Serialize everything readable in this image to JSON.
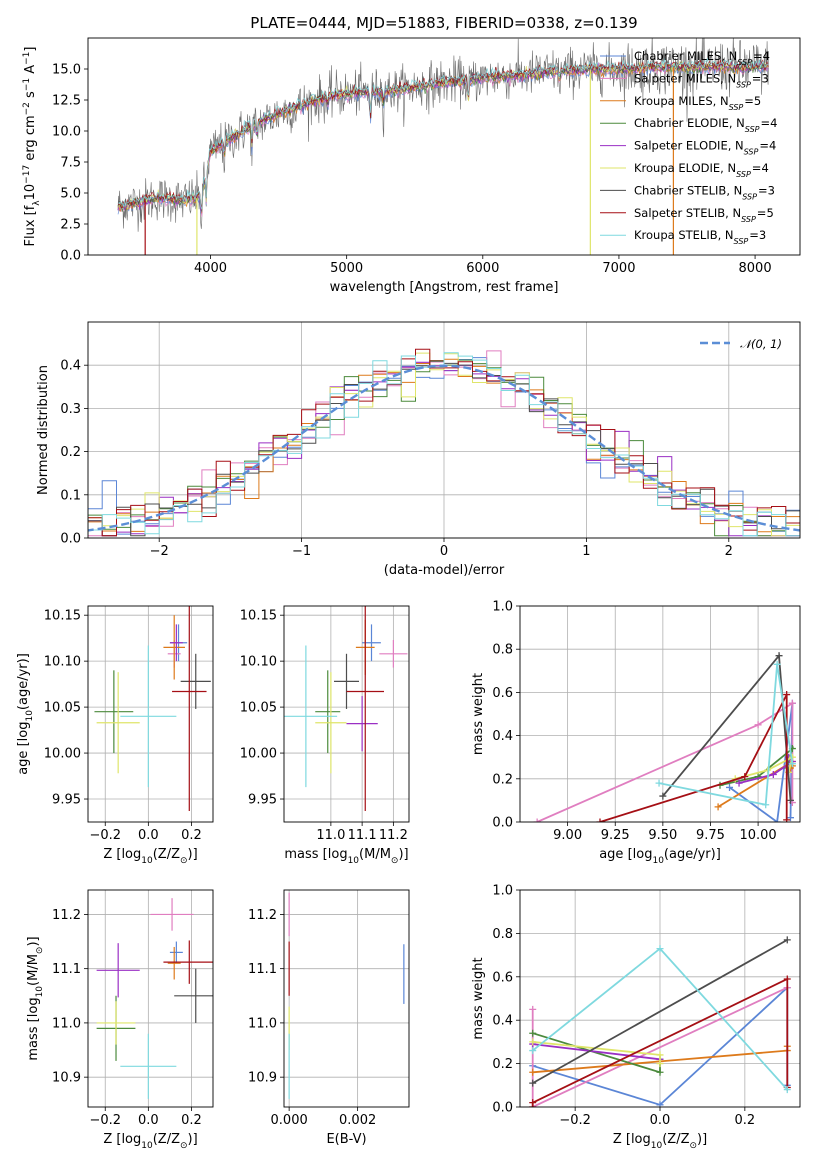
{
  "figure": {
    "title": "PLATE=0444, MJD=51883, FIBERID=0338, z=0.139"
  },
  "colors": {
    "Chabrier MILES": "#5b86d6",
    "Salpeter MILES": "#e07ec0",
    "Kroupa MILES": "#dd7a1b",
    "Chabrier ELODIE": "#4b8a3c",
    "Salpeter ELODIE": "#9a2fc4",
    "Kroupa ELODIE": "#dfe56a",
    "Chabrier STELIB": "#4d4d4d",
    "Salpeter STELIB": "#a50f15",
    "Kroupa STELIB": "#7fd9df",
    "normal": "#5b8ed6"
  },
  "chart_data": [
    {
      "id": "spectrum",
      "type": "line",
      "title": "PLATE=0444, MJD=51883, FIBERID=0338, z=0.139",
      "xlabel": "wavelength [Angstrom, rest frame]",
      "ylabel": "Flux [f_λ10^-17 erg cm^-2 s^-1 A^-1]",
      "xlim": [
        3100,
        8330
      ],
      "ylim": [
        0,
        17.5
      ],
      "xticks": [
        4000,
        5000,
        6000,
        7000,
        8000
      ],
      "yticks": [
        0.0,
        2.5,
        5.0,
        7.5,
        10.0,
        12.5,
        15.0
      ],
      "grid": false,
      "legend_position": "top-right",
      "legend": [
        {
          "label": "Chabrier MILES",
          "nssp": "4"
        },
        {
          "label": "Salpeter MILES",
          "nssp": "3"
        },
        {
          "label": "Kroupa MILES",
          "nssp": "5"
        },
        {
          "label": "Chabrier ELODIE",
          "nssp": "4"
        },
        {
          "label": "Salpeter ELODIE",
          "nssp": "4"
        },
        {
          "label": "Kroupa ELODIE",
          "nssp": "4"
        },
        {
          "label": "Chabrier STELIB",
          "nssp": "3"
        },
        {
          "label": "Salpeter STELIB",
          "nssp": "5"
        },
        {
          "label": "Kroupa STELIB",
          "nssp": "3"
        }
      ],
      "continuum": {
        "x": [
          3320,
          3500,
          3600,
          3800,
          3900,
          3950,
          4000,
          4100,
          4300,
          4500,
          4700,
          4900,
          5100,
          5300,
          5500,
          5700,
          5900,
          6100,
          6300,
          6500,
          6700,
          6900,
          7100,
          7300,
          7500,
          7700,
          7900,
          8100
        ],
        "y": [
          3.9,
          4.3,
          4.6,
          4.4,
          4.6,
          5.5,
          8.3,
          9.1,
          10.4,
          11.4,
          12.2,
          12.9,
          13.1,
          13.2,
          13.5,
          13.9,
          14.1,
          14.4,
          14.5,
          14.8,
          14.9,
          15.0,
          15.0,
          15.2,
          15.1,
          15.2,
          15.1,
          15.2
        ]
      },
      "absorption_features": [
        {
          "x": 3933,
          "depth": 3.0
        },
        {
          "x": 3968,
          "depth": 2.5
        },
        {
          "x": 4101,
          "depth": 1.5
        },
        {
          "x": 4304,
          "depth": 2.0
        },
        {
          "x": 4340,
          "depth": 1.3
        },
        {
          "x": 4861,
          "depth": 1.0
        },
        {
          "x": 5175,
          "depth": 2.5
        },
        {
          "x": 5270,
          "depth": 1.2
        },
        {
          "x": 5893,
          "depth": 2.3
        },
        {
          "x": 6563,
          "depth": 1.0
        }
      ],
      "model_artifacts": [
        {
          "x": 3520,
          "series": "Salpeter STELIB"
        },
        {
          "x": 3900,
          "series": "Kroupa ELODIE"
        },
        {
          "x": 6790,
          "series": "Kroupa ELODIE"
        },
        {
          "x": 7400,
          "series": "Kroupa MILES"
        }
      ]
    },
    {
      "id": "residuals",
      "type": "histogram",
      "xlabel": "(data-model)/error",
      "ylabel": "Normed distribution",
      "xlim": [
        -2.5,
        2.5
      ],
      "ylim": [
        0,
        0.5
      ],
      "xticks": [
        -2,
        -1,
        0,
        1,
        2
      ],
      "yticks": [
        0.0,
        0.1,
        0.2,
        0.3,
        0.4
      ],
      "grid": true,
      "legend_position": "top-right",
      "legend": [
        {
          "label": "𝒩(0, 1)"
        }
      ],
      "bin_width": 0.1
    },
    {
      "id": "age-vs-Z",
      "type": "errorbar",
      "xlabel": "Z [log10(Z/Z⊙)]",
      "ylabel": "age  [log10(age/yr)]",
      "xlim": [
        -0.28,
        0.3
      ],
      "ylim": [
        9.925,
        10.16
      ],
      "xticks": [
        -0.2,
        0.0,
        0.2
      ],
      "yticks": [
        9.95,
        10.0,
        10.05,
        10.1,
        10.15
      ],
      "grid": true,
      "points": [
        {
          "series": "Chabrier MILES",
          "x": 0.14,
          "xerr": 0.04,
          "y": 10.12,
          "yerr": 0.02
        },
        {
          "series": "Salpeter MILES",
          "x": 0.12,
          "xerr": 0.03,
          "y": 10.108,
          "yerr": 0.015
        },
        {
          "series": "Kroupa MILES",
          "x": 0.12,
          "xerr": 0.05,
          "y": 10.115,
          "yerr": 0.035
        },
        {
          "series": "Chabrier ELODIE",
          "x": -0.16,
          "xerr": 0.09,
          "y": 10.045,
          "yerr": 0.045
        },
        {
          "series": "Salpeter ELODIE",
          "x": 0.13,
          "xerr": 0.03,
          "y": 10.12,
          "yerr": 0.02
        },
        {
          "series": "Kroupa ELODIE",
          "x": -0.14,
          "xerr": 0.1,
          "y": 10.033,
          "yerr": 0.055
        },
        {
          "series": "Chabrier STELIB",
          "x": 0.22,
          "xerr": 0.07,
          "y": 10.078,
          "yerr": 0.03
        },
        {
          "series": "Salpeter STELIB",
          "x": 0.19,
          "xerr": 0.08,
          "y": 10.067,
          "yerr": 0.13
        },
        {
          "series": "Kroupa STELIB",
          "x": 0.0,
          "xerr": 0.13,
          "y": 10.04,
          "yerr": 0.077
        }
      ]
    },
    {
      "id": "age-vs-mass",
      "type": "errorbar",
      "xlabel": "mass [log10(M/M⊙)]",
      "ylabel": "",
      "xlim": [
        10.85,
        11.25
      ],
      "ylim": [
        9.925,
        10.16
      ],
      "xticks": [
        11.0,
        11.1,
        11.2
      ],
      "yticks": [
        9.95,
        10.0,
        10.05,
        10.1,
        10.15
      ],
      "grid": true,
      "points": [
        {
          "series": "Chabrier MILES",
          "x": 11.13,
          "xerr": 0.03,
          "y": 10.12,
          "yerr": 0.02
        },
        {
          "series": "Salpeter MILES",
          "x": 11.2,
          "xerr": 0.045,
          "y": 10.108,
          "yerr": 0.015
        },
        {
          "series": "Kroupa MILES",
          "x": 11.11,
          "xerr": 0.03,
          "y": 10.115,
          "yerr": 0.03
        },
        {
          "series": "Chabrier ELODIE",
          "x": 10.99,
          "xerr": 0.04,
          "y": 10.045,
          "yerr": 0.045
        },
        {
          "series": "Salpeter ELODIE",
          "x": 11.1,
          "xerr": 0.05,
          "y": 10.032,
          "yerr": 0.03
        },
        {
          "series": "Kroupa ELODIE",
          "x": 11.0,
          "xerr": 0.05,
          "y": 10.033,
          "yerr": 0.055
        },
        {
          "series": "Chabrier STELIB",
          "x": 11.05,
          "xerr": 0.04,
          "y": 10.078,
          "yerr": 0.03
        },
        {
          "series": "Salpeter STELIB",
          "x": 11.11,
          "xerr": 0.06,
          "y": 10.067,
          "yerr": 0.13
        },
        {
          "series": "Kroupa STELIB",
          "x": 10.92,
          "xerr": 0.1,
          "y": 10.04,
          "yerr": 0.077
        }
      ]
    },
    {
      "id": "weight-vs-age",
      "type": "line",
      "xlabel": "age  [log10(age/yr)]",
      "ylabel": "mass weight",
      "xlim": [
        8.75,
        10.22
      ],
      "ylim": [
        0,
        1.0
      ],
      "xticks": [
        9.0,
        9.25,
        9.5,
        9.75,
        10.0
      ],
      "yticks": [
        0.0,
        0.2,
        0.4,
        0.6,
        0.8,
        1.0
      ],
      "grid": true,
      "series": [
        {
          "name": "Chabrier MILES",
          "x": [
            9.85,
            10.1,
            10.18,
            10.17
          ],
          "y": [
            0.16,
            0.0,
            0.55,
            0.02
          ]
        },
        {
          "name": "Salpeter MILES",
          "x": [
            8.84,
            10.0,
            10.18,
            10.18
          ],
          "y": [
            0.0,
            0.45,
            0.55,
            0.09
          ]
        },
        {
          "name": "Kroupa MILES",
          "x": [
            9.79,
            10.18,
            10.18,
            10.17
          ],
          "y": [
            0.07,
            0.28,
            0.26,
            0.25
          ]
        },
        {
          "name": "Chabrier ELODIE",
          "x": [
            9.8,
            10.0,
            10.18,
            10.15
          ],
          "y": [
            0.17,
            0.21,
            0.34,
            0.25
          ]
        },
        {
          "name": "Salpeter ELODIE",
          "x": [
            9.9,
            10.08,
            10.18,
            10.16
          ],
          "y": [
            0.18,
            0.22,
            0.28,
            0.3
          ]
        },
        {
          "name": "Kroupa ELODIE",
          "x": [
            9.88,
            10.05,
            10.18,
            10.16
          ],
          "y": [
            0.2,
            0.24,
            0.3,
            0.23
          ]
        },
        {
          "name": "Chabrier STELIB",
          "x": [
            9.5,
            10.11,
            10.17
          ],
          "y": [
            0.12,
            0.77,
            0.1
          ]
        },
        {
          "name": "Salpeter STELIB",
          "x": [
            9.17,
            9.93,
            10.15,
            10.15
          ],
          "y": [
            0.0,
            0.21,
            0.59,
            0.01
          ]
        },
        {
          "name": "Kroupa STELIB",
          "x": [
            9.48,
            10.04,
            10.1,
            10.18
          ],
          "y": [
            0.18,
            0.08,
            0.73,
            0.27
          ]
        }
      ]
    },
    {
      "id": "mass-vs-Z",
      "type": "errorbar",
      "xlabel": "Z [log10(Z/Z⊙)]",
      "ylabel": "mass [log10(M/M⊙)]",
      "xlim": [
        -0.28,
        0.3
      ],
      "ylim": [
        10.845,
        11.245
      ],
      "xticks": [
        -0.2,
        0.0,
        0.2
      ],
      "yticks": [
        10.9,
        11.0,
        11.1,
        11.2
      ],
      "grid": true,
      "points": [
        {
          "series": "Chabrier MILES",
          "x": 0.13,
          "xerr": 0.03,
          "y": 11.13,
          "yerr": 0.02
        },
        {
          "series": "Salpeter MILES",
          "x": 0.11,
          "xerr": 0.1,
          "y": 11.2,
          "yerr": 0.03
        },
        {
          "series": "Kroupa MILES",
          "x": 0.12,
          "xerr": 0.03,
          "y": 11.11,
          "yerr": 0.03
        },
        {
          "series": "Chabrier ELODIE",
          "x": -0.15,
          "xerr": 0.09,
          "y": 10.99,
          "yerr": 0.06
        },
        {
          "series": "Salpeter ELODIE",
          "x": -0.14,
          "xerr": 0.1,
          "y": 11.097,
          "yerr": 0.05
        },
        {
          "series": "Kroupa ELODIE",
          "x": -0.15,
          "xerr": 0.09,
          "y": 11.0,
          "yerr": 0.04
        },
        {
          "series": "Chabrier STELIB",
          "x": 0.22,
          "xerr": 0.1,
          "y": 11.05,
          "yerr": 0.05
        },
        {
          "series": "Salpeter STELIB",
          "x": 0.19,
          "xerr": 0.12,
          "y": 11.112,
          "yerr": 0.04
        },
        {
          "series": "Kroupa STELIB",
          "x": 0.0,
          "xerr": 0.13,
          "y": 10.92,
          "yerr": 0.06
        }
      ]
    },
    {
      "id": "mass-vs-ebv",
      "type": "errorbar",
      "xlabel": "E(B-V)",
      "ylabel": "",
      "xlim": [
        -0.00015,
        0.0035
      ],
      "ylim": [
        10.845,
        11.245
      ],
      "xticks": [
        0.0,
        0.002
      ],
      "xtick_labels": [
        "0.000",
        "0.002"
      ],
      "yticks": [
        10.9,
        11.0,
        11.1,
        11.2
      ],
      "grid": true,
      "points": [
        {
          "series": "Chabrier MILES",
          "x": 0.00335,
          "xerr": 0.0,
          "y": 11.09,
          "yerr": 0.055
        },
        {
          "series": "Salpeter MILES",
          "x": 0.0,
          "xerr": 0.0,
          "y": 11.2,
          "yerr": 0.04
        },
        {
          "series": "Salpeter STELIB",
          "x": 0.0,
          "xerr": 0.0,
          "y": 11.1,
          "yerr": 0.05
        },
        {
          "series": "Kroupa ELODIE",
          "x": 0.0,
          "xerr": 0.0,
          "y": 10.99,
          "yerr": 0.04
        },
        {
          "series": "Kroupa STELIB",
          "x": 0.0,
          "xerr": 0.0,
          "y": 10.92,
          "yerr": 0.06
        }
      ]
    },
    {
      "id": "weight-vs-Z",
      "type": "line",
      "xlabel": "Z [log10(Z/Z⊙)]",
      "ylabel": "mass weight",
      "xlim": [
        -0.33,
        0.33
      ],
      "ylim": [
        0,
        1.0
      ],
      "xticks": [
        -0.2,
        0.0,
        0.2
      ],
      "yticks": [
        0.0,
        0.2,
        0.4,
        0.6,
        0.8,
        1.0
      ],
      "grid": true,
      "series": [
        {
          "name": "Chabrier MILES",
          "x": [
            -0.3,
            0.0,
            0.3,
            0.3
          ],
          "y": [
            0.19,
            0.01,
            0.55,
            0.1
          ]
        },
        {
          "name": "Salpeter MILES",
          "x": [
            -0.3,
            -0.3,
            0.3
          ],
          "y": [
            0.45,
            0.0,
            0.55
          ]
        },
        {
          "name": "Kroupa MILES",
          "x": [
            -0.3,
            0.0,
            0.3,
            0.3
          ],
          "y": [
            0.16,
            0.21,
            0.26,
            0.28
          ]
        },
        {
          "name": "Chabrier ELODIE",
          "x": [
            -0.3,
            0.0,
            0.0
          ],
          "y": [
            0.34,
            0.16,
            0.22
          ]
        },
        {
          "name": "Salpeter ELODIE",
          "x": [
            -0.3,
            0.0
          ],
          "y": [
            0.29,
            0.22
          ]
        },
        {
          "name": "Kroupa ELODIE",
          "x": [
            -0.3,
            0.0,
            0.0
          ],
          "y": [
            0.3,
            0.24,
            0.2
          ]
        },
        {
          "name": "Chabrier STELIB",
          "x": [
            -0.3,
            0.3
          ],
          "y": [
            0.11,
            0.77
          ]
        },
        {
          "name": "Salpeter STELIB",
          "x": [
            -0.3,
            -0.3,
            0.3,
            0.3
          ],
          "y": [
            0.0,
            0.02,
            0.59,
            0.09
          ]
        },
        {
          "name": "Kroupa STELIB",
          "x": [
            -0.3,
            0.0,
            0.3
          ],
          "y": [
            0.26,
            0.73,
            0.08
          ]
        }
      ]
    }
  ]
}
